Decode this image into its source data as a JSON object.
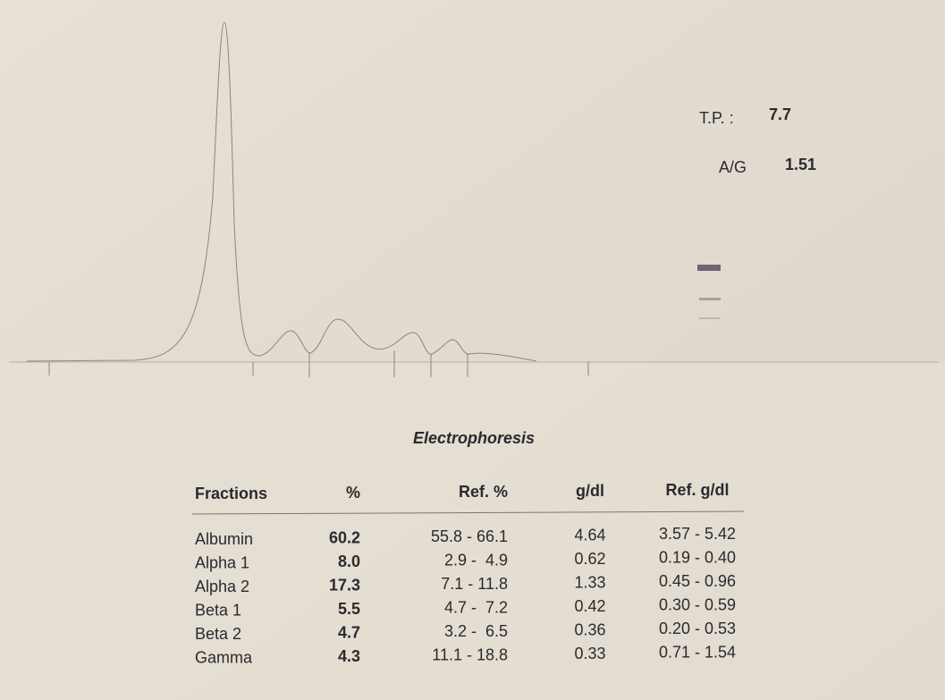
{
  "summary": {
    "tp": {
      "label": "T.P. :",
      "value": "7.7"
    },
    "ag": {
      "label": "A/G",
      "value": "1.51"
    }
  },
  "title": "Electrophoresis",
  "table": {
    "header": [
      "Fractions",
      "%",
      "Ref. %",
      "g/dl",
      "Ref. g/dl"
    ],
    "rows": [
      [
        "Albumin",
        "60.2",
        "55.8 - 66.1",
        "4.64",
        "3.57 - 5.42"
      ],
      [
        "Alpha 1",
        "8.0",
        "2.9 -  4.9",
        "0.62",
        "0.19 - 0.40"
      ],
      [
        "Alpha 2",
        "17.3",
        "7.1 - 11.8",
        "1.33",
        "0.45 - 0.96"
      ],
      [
        "Beta 1",
        "5.5",
        "4.7 -  7.2",
        "0.42",
        "0.30 - 0.59"
      ],
      [
        "Beta 2",
        "4.7",
        "3.2 -  6.5",
        "0.36",
        "0.20 - 0.53"
      ],
      [
        "Gamma",
        "4.3",
        "11.1 - 18.8",
        "0.33",
        "0.71 - 1.54"
      ]
    ]
  }
}
